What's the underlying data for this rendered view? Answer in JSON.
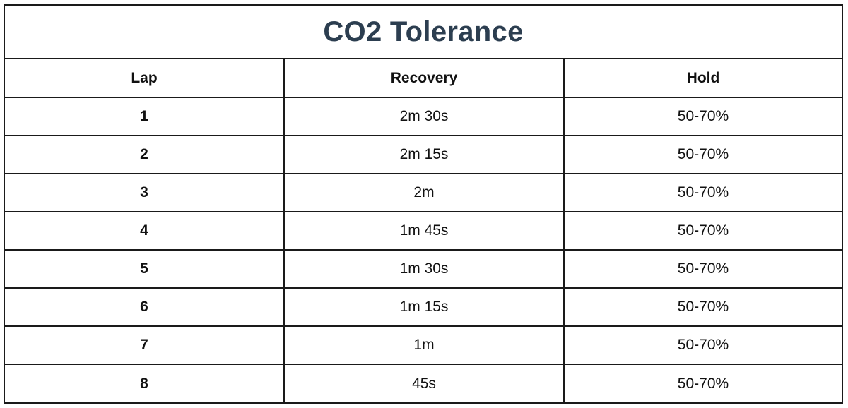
{
  "title": "CO2 Tolerance",
  "headers": [
    "Lap",
    "Recovery",
    "Hold"
  ],
  "rows": [
    {
      "lap": "1",
      "recovery": "2m 30s",
      "hold": "50-70%"
    },
    {
      "lap": "2",
      "recovery": "2m 15s",
      "hold": "50-70%"
    },
    {
      "lap": "3",
      "recovery": "2m",
      "hold": "50-70%"
    },
    {
      "lap": "4",
      "recovery": "1m 45s",
      "hold": "50-70%"
    },
    {
      "lap": "5",
      "recovery": "1m 30s",
      "hold": "50-70%"
    },
    {
      "lap": "6",
      "recovery": "1m 15s",
      "hold": "50-70%"
    },
    {
      "lap": "7",
      "recovery": "1m",
      "hold": "50-70%"
    },
    {
      "lap": "8",
      "recovery": "45s",
      "hold": "50-70%"
    }
  ],
  "colors": {
    "title": "#2c3e50",
    "border": "#1a1a1a",
    "text": "#111111",
    "background": "#ffffff"
  }
}
